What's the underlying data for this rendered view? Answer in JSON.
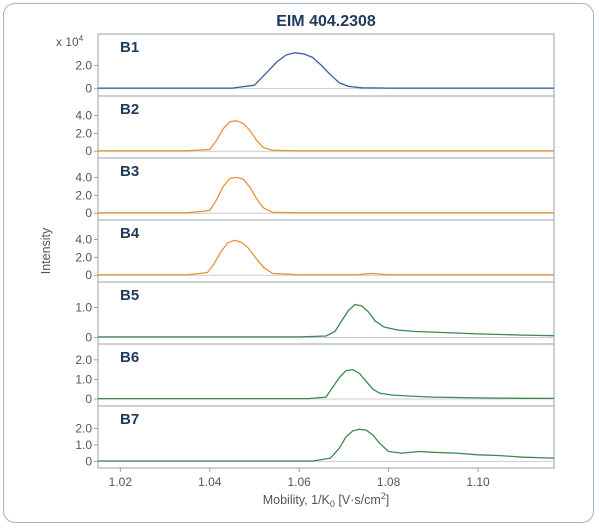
{
  "chart_data": {
    "type": "line",
    "title": "EIM 404.2308",
    "xlabel": "Mobility, 1/K",
    "xlabel_sub": "0",
    "xlabel_unit": " [V·s/cm",
    "xlabel_unit_sup": "2",
    "xlabel_end": "]",
    "ylabel": "Intensity",
    "scale_note": "x 10",
    "scale_note_sup": "4",
    "xlim": [
      1.015,
      1.117
    ],
    "xticks": [
      1.02,
      1.04,
      1.06,
      1.08,
      1.1
    ],
    "xtick_labels": [
      "1.02",
      "1.04",
      "1.06",
      "1.08",
      "1.10"
    ],
    "grid": false,
    "colors": {
      "blue": "#3a5fa0",
      "orange": "#e3963a",
      "green": "#3a8a52",
      "axis": "#9aa3ad"
    },
    "panels": [
      {
        "name": "B1",
        "color": "#3a5fa0",
        "ylim": [
          -0.2,
          4.2
        ],
        "yticks": [
          0,
          2.0
        ],
        "ytick_labels": [
          "0",
          "2.0"
        ],
        "x": [
          1.015,
          1.03,
          1.045,
          1.05,
          1.053,
          1.055,
          1.057,
          1.059,
          1.061,
          1.063,
          1.065,
          1.067,
          1.069,
          1.071,
          1.074,
          1.08,
          1.1,
          1.117
        ],
        "y": [
          0.05,
          0.05,
          0.05,
          0.3,
          1.5,
          2.3,
          2.9,
          3.1,
          3.0,
          2.7,
          2.0,
          1.2,
          0.5,
          0.2,
          0.08,
          0.05,
          0.05,
          0.05
        ]
      },
      {
        "name": "B2",
        "color": "#e3963a",
        "ylim": [
          -0.2,
          5.5
        ],
        "yticks": [
          0,
          2.0,
          4.0
        ],
        "ytick_labels": [
          "0",
          "2.0",
          "4.0"
        ],
        "x": [
          1.015,
          1.035,
          1.04,
          1.0415,
          1.043,
          1.0445,
          1.046,
          1.0475,
          1.049,
          1.0505,
          1.052,
          1.054,
          1.06,
          1.08,
          1.1,
          1.117
        ],
        "y": [
          0.05,
          0.05,
          0.2,
          1.2,
          2.5,
          3.3,
          3.4,
          3.1,
          2.3,
          1.2,
          0.4,
          0.1,
          0.05,
          0.05,
          0.05,
          0.05
        ]
      },
      {
        "name": "B3",
        "color": "#e3963a",
        "ylim": [
          -0.2,
          5.5
        ],
        "yticks": [
          0,
          2.0,
          4.0
        ],
        "ytick_labels": [
          "0",
          "2.0",
          "4.0"
        ],
        "x": [
          1.015,
          1.035,
          1.04,
          1.0415,
          1.043,
          1.0445,
          1.046,
          1.0475,
          1.049,
          1.0505,
          1.052,
          1.054,
          1.06,
          1.08,
          1.1,
          1.117
        ],
        "y": [
          0.05,
          0.05,
          0.3,
          1.5,
          3.0,
          3.9,
          4.0,
          3.8,
          2.9,
          1.6,
          0.6,
          0.1,
          0.05,
          0.05,
          0.05,
          0.05
        ]
      },
      {
        "name": "B4",
        "color": "#e3963a",
        "ylim": [
          -0.2,
          5.5
        ],
        "yticks": [
          0,
          2.0,
          4.0
        ],
        "ytick_labels": [
          "0",
          "2.0",
          "4.0"
        ],
        "x": [
          1.015,
          1.035,
          1.0395,
          1.041,
          1.0425,
          1.044,
          1.0455,
          1.047,
          1.0485,
          1.05,
          1.052,
          1.054,
          1.06,
          1.073,
          1.076,
          1.08,
          1.1,
          1.117
        ],
        "y": [
          0.05,
          0.05,
          0.3,
          1.3,
          2.6,
          3.6,
          3.9,
          3.7,
          3.1,
          2.1,
          0.9,
          0.2,
          0.05,
          0.05,
          0.2,
          0.05,
          0.05,
          0.05
        ]
      },
      {
        "name": "B5",
        "color": "#3a8a52",
        "ylim": [
          -0.05,
          1.65
        ],
        "yticks": [
          0,
          1.0
        ],
        "ytick_labels": [
          "0",
          "1.0"
        ],
        "x": [
          1.015,
          1.06,
          1.066,
          1.068,
          1.0695,
          1.071,
          1.0725,
          1.074,
          1.0755,
          1.077,
          1.079,
          1.082,
          1.086,
          1.09,
          1.095,
          1.1,
          1.105,
          1.11,
          1.117
        ],
        "y": [
          0.02,
          0.02,
          0.05,
          0.2,
          0.55,
          0.9,
          1.1,
          1.05,
          0.85,
          0.55,
          0.35,
          0.25,
          0.2,
          0.18,
          0.15,
          0.12,
          0.1,
          0.08,
          0.06
        ]
      },
      {
        "name": "B6",
        "color": "#3a8a52",
        "ylim": [
          -0.1,
          2.5
        ],
        "yticks": [
          0,
          1.0,
          2.0
        ],
        "ytick_labels": [
          "0",
          "1.0",
          "2.0"
        ],
        "x": [
          1.015,
          1.062,
          1.066,
          1.0675,
          1.069,
          1.0705,
          1.072,
          1.0735,
          1.075,
          1.0765,
          1.078,
          1.081,
          1.085,
          1.09,
          1.095,
          1.1,
          1.105,
          1.11,
          1.117
        ],
        "y": [
          0.02,
          0.02,
          0.1,
          0.6,
          1.1,
          1.45,
          1.5,
          1.3,
          0.9,
          0.5,
          0.3,
          0.2,
          0.15,
          0.1,
          0.08,
          0.06,
          0.05,
          0.04,
          0.03
        ]
      },
      {
        "name": "B7",
        "color": "#3a8a52",
        "ylim": [
          -0.1,
          3.0
        ],
        "yticks": [
          0,
          1.0,
          2.0
        ],
        "ytick_labels": [
          "0",
          "1.0",
          "2.0"
        ],
        "x": [
          1.015,
          1.063,
          1.067,
          1.069,
          1.0705,
          1.072,
          1.0735,
          1.075,
          1.0765,
          1.078,
          1.08,
          1.083,
          1.087,
          1.09,
          1.095,
          1.1,
          1.105,
          1.11,
          1.117
        ],
        "y": [
          0.02,
          0.02,
          0.2,
          0.8,
          1.5,
          1.85,
          1.95,
          1.9,
          1.6,
          1.1,
          0.6,
          0.5,
          0.6,
          0.55,
          0.5,
          0.4,
          0.35,
          0.25,
          0.2
        ]
      }
    ]
  }
}
